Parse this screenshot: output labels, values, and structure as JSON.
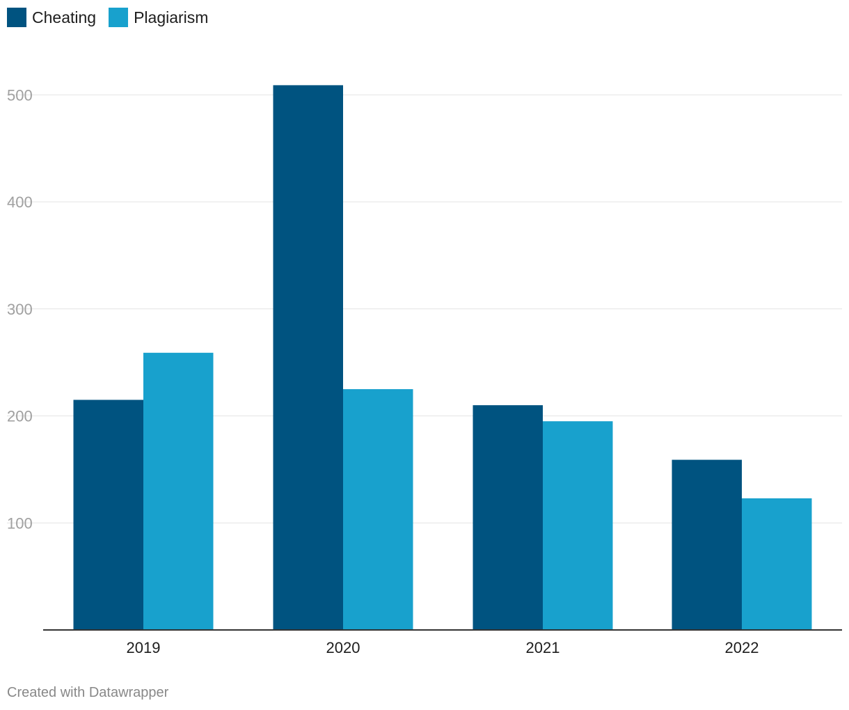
{
  "legend": [
    {
      "label": "Cheating",
      "color": "#005380"
    },
    {
      "label": "Plagiarism",
      "color": "#18a1cd"
    }
  ],
  "chart_data": {
    "type": "bar",
    "categories": [
      "2019",
      "2020",
      "2021",
      "2022"
    ],
    "series": [
      {
        "name": "Cheating",
        "color": "#005380",
        "values": [
          215,
          509,
          210,
          159
        ]
      },
      {
        "name": "Plagiarism",
        "color": "#18a1cd",
        "values": [
          259,
          225,
          195,
          123
        ]
      }
    ],
    "yticks": [
      100,
      200,
      300,
      400,
      500
    ],
    "ylim": [
      0,
      540
    ],
    "grid": true,
    "legend_position": "top-left",
    "title": "",
    "xlabel": "",
    "ylabel": ""
  },
  "footer": "Created with Datawrapper"
}
